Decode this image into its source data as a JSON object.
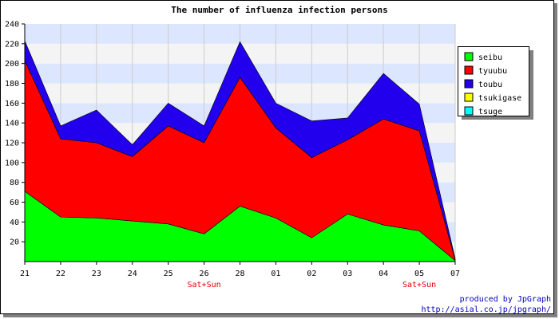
{
  "chart_data": {
    "type": "area",
    "stacked": true,
    "title": "The number of influenza infection persons",
    "categories": [
      "21",
      "22",
      "23",
      "24",
      "25",
      "26",
      "28",
      "01",
      "02",
      "03",
      "04",
      "05",
      "07"
    ],
    "sublabels": [
      "",
      "",
      "",
      "",
      "",
      "Sat+Sun",
      "",
      "",
      "",
      "",
      "",
      "Sat+Sun",
      ""
    ],
    "ylim": [
      0,
      240
    ],
    "yticks": [
      20,
      40,
      60,
      80,
      100,
      120,
      140,
      160,
      180,
      200,
      220,
      240
    ],
    "grid": true,
    "legend_position": "right",
    "series": [
      {
        "name": "seibu",
        "color": "#00ff00",
        "values": [
          71,
          45,
          44,
          41,
          38,
          28,
          56,
          44,
          24,
          48,
          37,
          31,
          1
        ]
      },
      {
        "name": "tyuubu",
        "color": "#ff0000",
        "values": [
          132,
          79,
          76,
          65,
          99,
          92,
          130,
          91,
          81,
          75,
          107,
          101,
          1
        ]
      },
      {
        "name": "toubu",
        "color": "#2200ee",
        "values": [
          20,
          13,
          33,
          12,
          23,
          17,
          36,
          25,
          37,
          22,
          46,
          27,
          1
        ]
      },
      {
        "name": "tsukigase",
        "color": "#ffff00",
        "values": [
          0,
          0,
          0,
          0,
          0,
          0,
          0,
          0,
          0,
          0,
          0,
          0,
          0
        ]
      },
      {
        "name": "tsuge",
        "color": "#00ffff",
        "values": [
          0,
          0,
          0,
          0,
          0,
          0,
          0,
          0,
          0,
          0,
          0,
          0,
          0
        ]
      }
    ]
  },
  "credit": {
    "line1": "produced by JpGraph",
    "line2": "http://asial.co.jp/jpgraph/"
  },
  "colors": {
    "band_blue": "#dde6ff",
    "band_light": "#f4f4f4"
  }
}
